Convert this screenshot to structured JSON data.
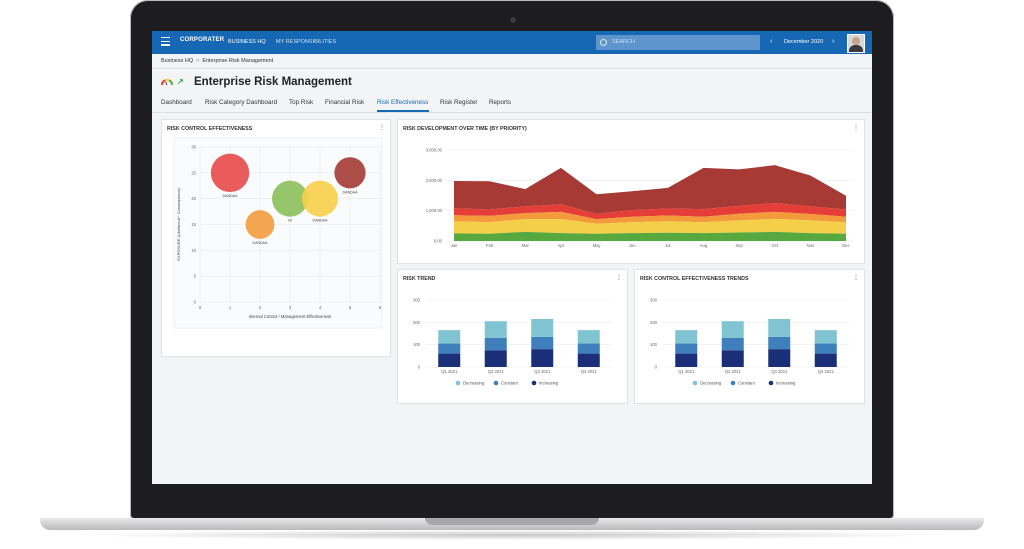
{
  "topbar": {
    "logo": "CORPORATER",
    "nav": [
      "BUSINESS HQ",
      "MY RESPONSIBILITIES"
    ],
    "search_placeholder": "SEARCH",
    "period": "December 2020",
    "color": "#1768b4"
  },
  "breadcrumb": [
    "Business HQ",
    "Enterprise Risk Management"
  ],
  "page_title": "Enterprise Risk Management",
  "tabs": [
    "Dashboard",
    "Risk Category Dashboard",
    "Top Risk",
    "Financial Risk",
    "Risk Effectiveness",
    "Risk Register",
    "Reports"
  ],
  "active_tab": "Risk Effectiveness",
  "cards": {
    "bubble_title": "RISK CONTROL EFFECTIVENESS",
    "area_title": "RISK DEVELOPMENT OVER TIME (BY PRIORITY)",
    "trend_title": "RISK TREND",
    "trend2_title": "RISK CONTROL EFFECTIVENESS TRENDS"
  },
  "chart_data": [
    {
      "type": "scatter",
      "title": "RISK CONTROL EFFECTIVENESS",
      "xlabel": "Internal Control / Management Effectiveness",
      "ylabel": "EXPOSURE (Likelihood * Consequence)",
      "xlim": [
        0,
        6
      ],
      "ylim": [
        0,
        30
      ],
      "xticks": [
        "0",
        "1",
        "2",
        "3",
        "4",
        "5",
        "6"
      ],
      "yticks": [
        "0",
        "5",
        "10",
        "15",
        "20",
        "25",
        "30"
      ],
      "points": [
        {
          "x": 1,
          "y": 25,
          "size": 3.2,
          "label": "DANDAA",
          "color": "#e84a4a"
        },
        {
          "x": 2,
          "y": 15,
          "size": 2.4,
          "label": "DANDAA",
          "color": "#f29b3c"
        },
        {
          "x": 3,
          "y": 20,
          "size": 3.0,
          "label": "Int",
          "color": "#8cbf5a"
        },
        {
          "x": 4,
          "y": 20,
          "size": 3.0,
          "label": "DANDAA",
          "color": "#f7cf4a"
        },
        {
          "x": 5,
          "y": 25,
          "size": 2.6,
          "label": "DANDAA",
          "color": "#a33b33"
        }
      ],
      "grid": true
    },
    {
      "type": "area",
      "title": "RISK DEVELOPMENT OVER TIME (BY PRIORITY)",
      "categories": [
        "Jan",
        "Feb",
        "Mar",
        "Apr",
        "May",
        "Jun",
        "Jul",
        "Aug",
        "Sep",
        "Oct",
        "Nov",
        "Dec"
      ],
      "yticks": [
        "0.00",
        "1,000.00",
        "2,000.00",
        "3,000.00"
      ],
      "ylim": [
        0,
        3000
      ],
      "stacked": true,
      "series": [
        {
          "color": "#58a840",
          "values": [
            250,
            240,
            300,
            260,
            240,
            260,
            270,
            260,
            280,
            300,
            260,
            240
          ]
        },
        {
          "color": "#f6cf4a",
          "values": [
            400,
            380,
            420,
            460,
            330,
            360,
            380,
            360,
            400,
            430,
            420,
            380
          ]
        },
        {
          "color": "#f29a3c",
          "values": [
            200,
            210,
            200,
            240,
            150,
            180,
            190,
            180,
            220,
            230,
            210,
            180
          ]
        },
        {
          "color": "#e53e38",
          "values": [
            230,
            210,
            220,
            250,
            170,
            220,
            230,
            250,
            260,
            290,
            250,
            240
          ]
        },
        {
          "color": "#a73a34",
          "values": [
            900,
            930,
            570,
            1200,
            650,
            620,
            680,
            1360,
            1200,
            1250,
            1020,
            450
          ]
        }
      ],
      "grid": true
    },
    {
      "type": "bar",
      "title": "RISK TREND",
      "categories": [
        "Q1 2021",
        "Q2 2021",
        "Q3 2021",
        "Q4 2021"
      ],
      "yticks": [
        "0",
        "100",
        "200",
        "300"
      ],
      "ylim": [
        0,
        300
      ],
      "stacked": true,
      "series": [
        {
          "name": "Increasing",
          "color": "#1b2f78",
          "values": [
            60,
            75,
            80,
            60
          ]
        },
        {
          "name": "Constant",
          "color": "#3e7fbc",
          "values": [
            45,
            55,
            55,
            45
          ]
        },
        {
          "name": "Decreasing",
          "color": "#7fc4d0",
          "values": [
            60,
            75,
            80,
            60
          ]
        }
      ],
      "legend": [
        "Decreasing",
        "Constant",
        "Increasing"
      ],
      "legend_position": "bottom"
    },
    {
      "type": "bar",
      "title": "RISK CONTROL EFFECTIVENESS TRENDS",
      "categories": [
        "Q1 2021",
        "Q2 2021",
        "Q3 2021",
        "Q4 2021"
      ],
      "yticks": [
        "0",
        "100",
        "200",
        "300"
      ],
      "ylim": [
        0,
        300
      ],
      "stacked": true,
      "series": [
        {
          "name": "Increasing",
          "color": "#1b2f78",
          "values": [
            60,
            75,
            80,
            60
          ]
        },
        {
          "name": "Constant",
          "color": "#3e7fbc",
          "values": [
            45,
            55,
            55,
            45
          ]
        },
        {
          "name": "Decreasing",
          "color": "#7fc4d0",
          "values": [
            60,
            75,
            80,
            60
          ]
        }
      ],
      "legend": [
        "Decreasing",
        "Constant",
        "Increasing"
      ],
      "legend_position": "bottom"
    }
  ]
}
